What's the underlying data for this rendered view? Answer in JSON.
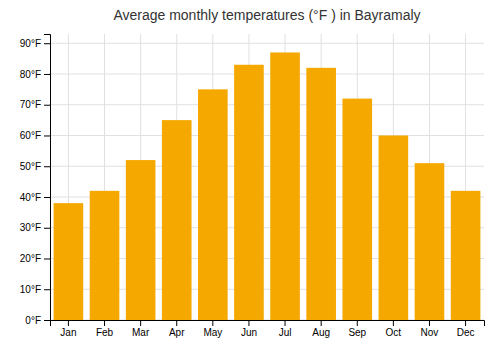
{
  "chart_data": {
    "type": "bar",
    "title": "Average monthly temperatures (°F ) in Bayramaly",
    "categories": [
      "Jan",
      "Feb",
      "Mar",
      "Apr",
      "May",
      "Jun",
      "Jul",
      "Aug",
      "Sep",
      "Oct",
      "Nov",
      "Dec"
    ],
    "values": [
      38,
      42,
      52,
      65,
      75,
      83,
      87,
      82,
      72,
      60,
      51,
      42
    ],
    "color": "#F5A800",
    "ylim": [
      0,
      93
    ],
    "yticks": [
      {
        "value": 0,
        "label": "0°F"
      },
      {
        "value": 10,
        "label": "10°F"
      },
      {
        "value": 20,
        "label": "20°F"
      },
      {
        "value": 30,
        "label": "30°F"
      },
      {
        "value": 40,
        "label": "40°F"
      },
      {
        "value": 50,
        "label": "50°F"
      },
      {
        "value": 60,
        "label": "60°F"
      },
      {
        "value": 70,
        "label": "70°F"
      },
      {
        "value": 80,
        "label": "80°F"
      },
      {
        "value": 90,
        "label": "90°F"
      }
    ],
    "grid": true
  }
}
